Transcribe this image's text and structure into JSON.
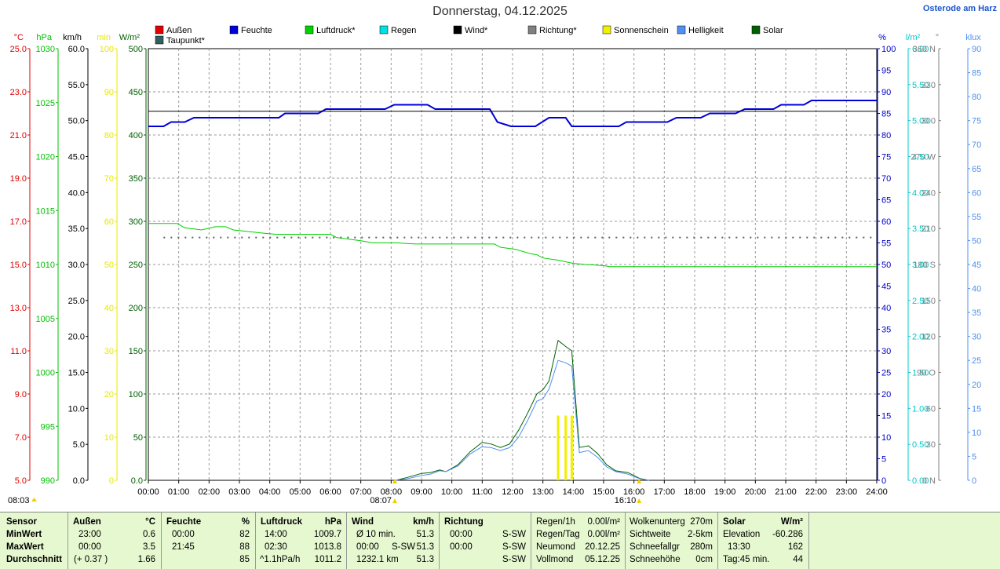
{
  "header": {
    "date_title": "Donnerstag, 04.12.2025",
    "location_link": "Osterode am Harz"
  },
  "legend": [
    {
      "label": "Außen",
      "color": "#e00000"
    },
    {
      "label": "Feuchte",
      "color": "#0000d8"
    },
    {
      "label": "Luftdruck*",
      "color": "#00d000"
    },
    {
      "label": "Regen",
      "color": "#00e0e0"
    },
    {
      "label": "Wind*",
      "color": "#000000"
    },
    {
      "label": "Richtung*",
      "color": "#808080"
    },
    {
      "label": "Sonnenschein",
      "color": "#f0f000"
    },
    {
      "label": "Helligkeit",
      "color": "#5090f0"
    },
    {
      "label": "Solar",
      "color": "#006000"
    },
    {
      "label": "Taupunkt*",
      "color": "#306060"
    }
  ],
  "chart_data": {
    "type": "line",
    "title": "Donnerstag, 04.12.2025",
    "x_ticks": [
      "00:00",
      "01:00",
      "02:00",
      "03:00",
      "04:00",
      "05:00",
      "06:00",
      "07:00",
      "08:00",
      "09:00",
      "10:00",
      "11:00",
      "12:00",
      "13:00",
      "14:00",
      "15:00",
      "16:00",
      "17:00",
      "18:00",
      "19:00",
      "20:00",
      "21:00",
      "22:00",
      "23:00",
      "24:00"
    ],
    "x_range_hours": [
      0,
      24
    ],
    "grid": true,
    "left_axes": [
      {
        "unit": "°C",
        "color": "#e00000",
        "range": [
          5.0,
          25.0
        ],
        "ticks": [
          "25.0",
          "23.0",
          "21.0",
          "19.0",
          "17.0",
          "15.0",
          "13.0",
          "11.0",
          "9.0",
          "7.0",
          "5.0"
        ]
      },
      {
        "unit": "hPa",
        "color": "#00c000",
        "range": [
          990,
          1030
        ],
        "ticks": [
          "1030",
          "1025",
          "1020",
          "1015",
          "1010",
          "1005",
          "1000",
          "995",
          "990"
        ]
      },
      {
        "unit": "km/h",
        "color": "#000000",
        "range": [
          0,
          60
        ],
        "ticks": [
          "60.0",
          "55.0",
          "50.0",
          "45.0",
          "40.0",
          "35.0",
          "30.0",
          "25.0",
          "20.0",
          "15.0",
          "10.0",
          "5.0",
          "0.0"
        ]
      },
      {
        "unit": "min",
        "color": "#e8e800",
        "range": [
          0,
          100
        ],
        "ticks": [
          "100",
          "90",
          "80",
          "70",
          "60",
          "50",
          "40",
          "30",
          "20",
          "10",
          "0"
        ]
      },
      {
        "unit": "W/m²",
        "color": "#006000",
        "range": [
          0,
          500
        ],
        "ticks": [
          "500",
          "450",
          "400",
          "350",
          "300",
          "250",
          "200",
          "150",
          "100",
          "50",
          "0.0"
        ]
      }
    ],
    "right_axes": [
      {
        "unit": "%",
        "color": "#0000c8",
        "range": [
          0,
          100
        ],
        "ticks": [
          "100",
          "95",
          "90",
          "85",
          "80",
          "75",
          "70",
          "65",
          "60",
          "55",
          "50",
          "45",
          "40",
          "35",
          "30",
          "25",
          "20",
          "15",
          "10",
          "5",
          "0"
        ]
      },
      {
        "unit": "l/m²",
        "color": "#00c8c8",
        "range": [
          0,
          6
        ],
        "ticks": [
          "6.00",
          "5.50",
          "5.00",
          "4.50",
          "4.00",
          "3.50",
          "3.00",
          "2.50",
          "2.00",
          "1.50",
          "1.00",
          "0.50",
          "0.00"
        ]
      },
      {
        "unit": "°",
        "color": "#808080",
        "range": [
          0,
          360
        ],
        "ticks": [
          "360 N",
          "330",
          "300",
          "270 W",
          "240",
          "210",
          "180 S",
          "150",
          "120",
          "90 O",
          "60",
          "30",
          "0 N"
        ]
      },
      {
        "unit": "klux",
        "color": "#5090f0",
        "range": [
          0,
          90
        ],
        "ticks": [
          "90",
          "85",
          "80",
          "75",
          "70",
          "65",
          "60",
          "55",
          "50",
          "45",
          "40",
          "35",
          "30",
          "25",
          "20",
          "15",
          "10",
          "5",
          "0"
        ]
      }
    ],
    "series": [
      {
        "name": "Feuchte",
        "unit": "%",
        "color": "#0000d8",
        "width": 2,
        "points": [
          [
            0,
            82
          ],
          [
            0.5,
            82
          ],
          [
            0.75,
            83
          ],
          [
            1.2,
            83
          ],
          [
            1.5,
            84
          ],
          [
            4.3,
            84
          ],
          [
            4.5,
            85
          ],
          [
            5.6,
            85
          ],
          [
            5.85,
            86
          ],
          [
            7.8,
            86
          ],
          [
            8.1,
            87
          ],
          [
            9.2,
            87
          ],
          [
            9.45,
            86
          ],
          [
            11.25,
            86
          ],
          [
            11.5,
            83
          ],
          [
            11.95,
            82
          ],
          [
            12.75,
            82
          ],
          [
            13.2,
            84
          ],
          [
            13.75,
            84
          ],
          [
            13.95,
            82
          ],
          [
            15.5,
            82
          ],
          [
            15.75,
            83
          ],
          [
            17.1,
            83
          ],
          [
            17.4,
            84
          ],
          [
            18.2,
            84
          ],
          [
            18.5,
            85
          ],
          [
            19.35,
            85
          ],
          [
            19.65,
            86
          ],
          [
            20.6,
            86
          ],
          [
            20.85,
            87
          ],
          [
            21.6,
            87
          ],
          [
            21.85,
            88
          ],
          [
            24,
            88
          ]
        ]
      },
      {
        "name": "Luftdruck*",
        "unit": "hPa",
        "color": "#00d000",
        "width": 1,
        "points": [
          [
            0,
            1013.8
          ],
          [
            0.95,
            1013.8
          ],
          [
            1.2,
            1013.4
          ],
          [
            1.75,
            1013.2
          ],
          [
            2.2,
            1013.5
          ],
          [
            2.55,
            1013.5
          ],
          [
            2.8,
            1013.2
          ],
          [
            3.8,
            1012.9
          ],
          [
            4.2,
            1012.8
          ],
          [
            6.0,
            1012.8
          ],
          [
            6.2,
            1012.5
          ],
          [
            7.0,
            1012.2
          ],
          [
            7.4,
            1012.0
          ],
          [
            8.2,
            1012.0
          ],
          [
            8.8,
            1011.9
          ],
          [
            10.0,
            1011.9
          ],
          [
            11.4,
            1011.9
          ],
          [
            11.6,
            1011.6
          ],
          [
            12.1,
            1011.4
          ],
          [
            12.6,
            1011.0
          ],
          [
            12.8,
            1010.9
          ],
          [
            13.0,
            1010.6
          ],
          [
            13.5,
            1010.4
          ],
          [
            14.0,
            1010.1
          ],
          [
            14.4,
            1010.0
          ],
          [
            15.0,
            1009.9
          ],
          [
            15.2,
            1009.8
          ],
          [
            24,
            1009.8
          ]
        ]
      },
      {
        "name": "Wind*",
        "unit": "km/h",
        "color": "#000000",
        "width": 1,
        "points": [
          [
            0,
            51.3
          ],
          [
            24,
            51.3
          ]
        ]
      },
      {
        "name": "Richtung*",
        "unit": "°",
        "color": "#606060",
        "width": 2,
        "dotted": true,
        "points": [
          [
            0.5,
            202.5
          ],
          [
            24,
            202.5
          ]
        ]
      },
      {
        "name": "Solar",
        "unit": "W/m²",
        "color": "#006000",
        "width": 1,
        "points": [
          [
            8.15,
            0
          ],
          [
            8.5,
            3
          ],
          [
            9.0,
            8
          ],
          [
            9.3,
            9
          ],
          [
            9.6,
            12
          ],
          [
            9.8,
            10
          ],
          [
            10.2,
            18
          ],
          [
            10.6,
            33
          ],
          [
            11.0,
            44
          ],
          [
            11.3,
            42
          ],
          [
            11.6,
            38
          ],
          [
            11.9,
            42
          ],
          [
            12.2,
            58
          ],
          [
            12.5,
            78
          ],
          [
            12.8,
            100
          ],
          [
            13.0,
            105
          ],
          [
            13.2,
            115
          ],
          [
            13.5,
            162
          ],
          [
            13.75,
            155
          ],
          [
            13.95,
            150
          ],
          [
            14.2,
            38
          ],
          [
            14.5,
            40
          ],
          [
            14.8,
            31
          ],
          [
            15.1,
            18
          ],
          [
            15.4,
            11
          ],
          [
            15.8,
            9
          ],
          [
            16.2,
            2
          ],
          [
            16.5,
            0
          ]
        ]
      },
      {
        "name": "Helligkeit",
        "unit": "klux",
        "color": "#5090f0",
        "width": 1,
        "points": [
          [
            8.15,
            0
          ],
          [
            8.5,
            0.3
          ],
          [
            9.0,
            1
          ],
          [
            9.3,
            1.3
          ],
          [
            9.6,
            2
          ],
          [
            9.8,
            1.8
          ],
          [
            10.2,
            3
          ],
          [
            10.6,
            5.5
          ],
          [
            11.0,
            7
          ],
          [
            11.3,
            6.8
          ],
          [
            11.6,
            6.2
          ],
          [
            11.9,
            6.8
          ],
          [
            12.2,
            9
          ],
          [
            12.5,
            12.5
          ],
          [
            12.8,
            16.5
          ],
          [
            13.0,
            17
          ],
          [
            13.2,
            19
          ],
          [
            13.5,
            25
          ],
          [
            13.75,
            24.5
          ],
          [
            13.95,
            23.8
          ],
          [
            14.2,
            5.8
          ],
          [
            14.5,
            6.2
          ],
          [
            14.8,
            4.8
          ],
          [
            15.1,
            2.8
          ],
          [
            15.4,
            1.8
          ],
          [
            15.8,
            1.3
          ],
          [
            16.2,
            0.3
          ],
          [
            16.5,
            0
          ]
        ]
      }
    ],
    "sunshine_bars": {
      "unit": "min",
      "color": "#f0f000",
      "bars": [
        [
          13.5,
          15
        ],
        [
          13.75,
          15
        ],
        [
          13.95,
          15
        ]
      ]
    },
    "markers": [
      {
        "label": "08:03",
        "hour": 8.05,
        "row": "top"
      },
      {
        "label": "08:07",
        "hour": 8.12,
        "row": "bottom"
      },
      {
        "label": "16:10",
        "hour": 16.17,
        "row": "bottom"
      }
    ]
  },
  "stats": {
    "sensor": {
      "title": "Sensor",
      "rows": [
        "MinWert",
        "MaxWert",
        "Durchschnitt"
      ]
    },
    "aussen": {
      "title": "Außen",
      "unit": "°C",
      "rows": [
        [
          "23:00",
          "0.6"
        ],
        [
          "00:00",
          "3.5"
        ],
        [
          "(+ 0.37 )",
          "1.66"
        ]
      ]
    },
    "feuchte": {
      "title": "Feuchte",
      "unit": "%",
      "rows": [
        [
          "00:00",
          "82"
        ],
        [
          "21:45",
          "88"
        ],
        [
          "",
          "85"
        ]
      ]
    },
    "luftdruck": {
      "title": "Luftdruck",
      "unit": "hPa",
      "rows": [
        [
          "14:00",
          "1009.7"
        ],
        [
          "02:30",
          "1013.8"
        ],
        [
          "^1.1hPa/h",
          "1011.2"
        ]
      ]
    },
    "wind": {
      "title": "Wind",
      "unit": "km/h",
      "rows": [
        [
          "Ø 10 min.",
          "51.3"
        ],
        [
          "00:00",
          "S-SW",
          "51.3"
        ],
        [
          "1232.1 km",
          "51.3"
        ]
      ]
    },
    "richtung": {
      "title": "Richtung",
      "rows": [
        [
          "00:00",
          "S-SW"
        ],
        [
          "00:00",
          "S-SW"
        ],
        [
          "",
          "S-SW"
        ]
      ]
    },
    "regen": {
      "rows": [
        [
          "Regen/1h",
          "0.00l/m²"
        ],
        [
          "Regen/Tag",
          "0.00l/m²"
        ],
        [
          "Neumond",
          "20.12.25"
        ],
        [
          "Vollmond",
          "05.12.25"
        ]
      ]
    },
    "wolken": {
      "rows": [
        [
          "Wolkenunterg",
          "270m"
        ],
        [
          "Sichtweite",
          "2-5km"
        ],
        [
          "Schneefallgr",
          "280m"
        ],
        [
          "Schneehöhe",
          "0cm"
        ]
      ]
    },
    "solar": {
      "title": "Solar",
      "unit": "W/m²",
      "rows": [
        [
          "Elevation",
          "-60.286"
        ],
        [
          "13:30",
          "162"
        ],
        [
          "Tag:45 min.",
          "44"
        ]
      ]
    }
  }
}
